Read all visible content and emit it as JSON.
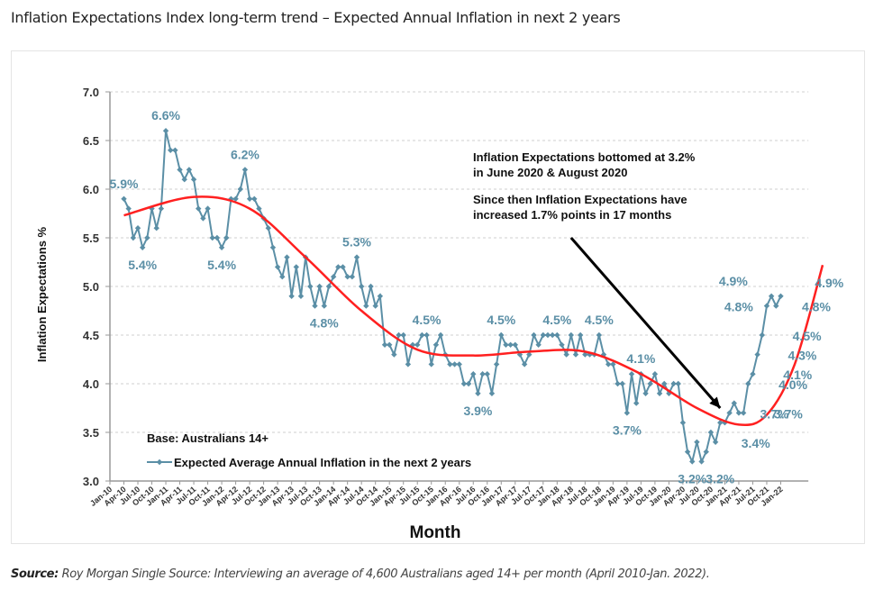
{
  "page": {
    "title": "Inflation Expectations Index long-term trend – Expected Annual Inflation in next 2 years",
    "source_label": "Source:",
    "source_text": " Roy Morgan Single Source: Interviewing an average of 4,600 Australians aged 14+ per month (April 2010-Jan. 2022)."
  },
  "chart_data": {
    "type": "line",
    "title": "Inflation Expectations Index long-term trend – Expected Annual Inflation in next 2 years",
    "xlabel": "Month",
    "ylabel": "Inflation Expectations %",
    "ylim": [
      3.0,
      7.0
    ],
    "yticks": [
      "3.0",
      "3.5",
      "4.0",
      "4.5",
      "5.0",
      "5.5",
      "6.0",
      "6.5",
      "7.0"
    ],
    "ytick_values": [
      3.0,
      3.5,
      4.0,
      4.5,
      5.0,
      5.5,
      6.0,
      6.5,
      7.0
    ],
    "grid": "horizontal-dashed",
    "xticks": [
      "Jan-10",
      "Apr-10",
      "Jul-10",
      "Oct-10",
      "Jan-11",
      "Apr-11",
      "Jul-11",
      "Oct-11",
      "Jan-12",
      "Apr-12",
      "Jul-12",
      "Oct-12",
      "Jan-13",
      "Apr-13",
      "Jul-13",
      "Oct-13",
      "Jan-14",
      "Apr-14",
      "Jul-14",
      "Oct-14",
      "Jan-15",
      "Apr-15",
      "Jul-15",
      "Oct-15",
      "Jan-16",
      "Apr-16",
      "Jul-16",
      "Oct-16",
      "Jan-17",
      "Apr-17",
      "Jul-17",
      "Oct-17",
      "Jan-18",
      "Apr-18",
      "Jul-18",
      "Oct-18",
      "Jan-19",
      "Apr-19",
      "Jul-19",
      "Oct-19",
      "Jan-20",
      "Apr-20",
      "Jul-20",
      "Oct-20",
      "Jan-21",
      "Apr-21",
      "Jul-21",
      "Oct-21",
      "Jan-22"
    ],
    "x_start": "Apr-10",
    "x_end": "Jan-22",
    "legend": {
      "position": "bottom-left",
      "base_note": "Base: Australians 14+",
      "entries": [
        "Expected Average Annual Inflation in the next 2 years"
      ]
    },
    "series": [
      {
        "name": "Expected Average Annual Inflation in the next 2 years",
        "color": "#5b8fa6",
        "start_month_index": 3,
        "values": [
          5.9,
          5.8,
          5.5,
          5.6,
          5.4,
          5.5,
          5.8,
          5.6,
          5.8,
          6.6,
          6.4,
          6.4,
          6.2,
          6.1,
          6.2,
          6.1,
          5.8,
          5.7,
          5.8,
          5.5,
          5.5,
          5.4,
          5.5,
          5.9,
          5.9,
          6.0,
          6.2,
          5.9,
          5.9,
          5.8,
          5.7,
          5.6,
          5.4,
          5.2,
          5.1,
          5.3,
          4.9,
          5.2,
          4.9,
          5.3,
          5.0,
          4.8,
          5.0,
          4.8,
          5.0,
          5.1,
          5.2,
          5.2,
          5.1,
          5.1,
          5.3,
          5.0,
          4.8,
          5.0,
          4.8,
          4.9,
          4.4,
          4.4,
          4.3,
          4.5,
          4.5,
          4.2,
          4.4,
          4.4,
          4.5,
          4.5,
          4.2,
          4.4,
          4.5,
          4.3,
          4.2,
          4.2,
          4.2,
          4.0,
          4.0,
          4.1,
          3.9,
          4.1,
          4.1,
          3.9,
          4.2,
          4.5,
          4.4,
          4.4,
          4.4,
          4.3,
          4.2,
          4.3,
          4.5,
          4.4,
          4.5,
          4.5,
          4.5,
          4.5,
          4.4,
          4.3,
          4.5,
          4.3,
          4.5,
          4.3,
          4.3,
          4.3,
          4.5,
          4.3,
          4.2,
          4.2,
          4.0,
          4.0,
          3.7,
          4.1,
          3.8,
          4.1,
          3.9,
          4.0,
          4.1,
          3.9,
          4.0,
          3.9,
          4.0,
          4.0,
          3.6,
          3.3,
          3.2,
          3.4,
          3.2,
          3.3,
          3.5,
          3.4,
          3.6,
          3.6,
          3.7,
          3.8,
          3.7,
          3.7,
          4.0,
          4.1,
          4.3,
          4.5,
          4.8,
          4.9,
          4.8,
          4.9
        ]
      },
      {
        "name": "Trend",
        "color": "#ff2020",
        "type": "smooth-trend",
        "points": [
          [
            3,
            5.73
          ],
          [
            18,
            5.92
          ],
          [
            30,
            5.8
          ],
          [
            42,
            5.3
          ],
          [
            54,
            4.75
          ],
          [
            66,
            4.35
          ],
          [
            78,
            4.29
          ],
          [
            90,
            4.33
          ],
          [
            102,
            4.33
          ],
          [
            114,
            4.1
          ],
          [
            126,
            3.75
          ],
          [
            135,
            3.58
          ],
          [
            141,
            3.68
          ],
          [
            147,
            4.2
          ],
          [
            153,
            5.22
          ]
        ]
      }
    ],
    "data_labels": [
      {
        "text": "5.9%",
        "month_index": 3,
        "value": 5.9,
        "pos": "above"
      },
      {
        "text": "5.4%",
        "month_index": 7,
        "value": 5.4,
        "pos": "below"
      },
      {
        "text": "6.6%",
        "month_index": 12,
        "value": 6.6,
        "pos": "above"
      },
      {
        "text": "6.2%",
        "month_index": 29,
        "value": 6.2,
        "pos": "above"
      },
      {
        "text": "5.4%",
        "month_index": 24,
        "value": 5.4,
        "pos": "below"
      },
      {
        "text": "4.8%",
        "month_index": 46,
        "value": 4.8,
        "pos": "below"
      },
      {
        "text": "5.3%",
        "month_index": 53,
        "value": 5.3,
        "pos": "above"
      },
      {
        "text": "4.5%",
        "month_index": 68,
        "value": 4.5,
        "pos": "above"
      },
      {
        "text": "3.9%",
        "month_index": 79,
        "value": 3.9,
        "pos": "below"
      },
      {
        "text": "4.5%",
        "month_index": 84,
        "value": 4.5,
        "pos": "above"
      },
      {
        "text": "4.5%",
        "month_index": 96,
        "value": 4.5,
        "pos": "above"
      },
      {
        "text": "4.5%",
        "month_index": 105,
        "value": 4.5,
        "pos": "above"
      },
      {
        "text": "4.1%",
        "month_index": 114,
        "value": 4.1,
        "pos": "above"
      },
      {
        "text": "3.7%",
        "month_index": 111,
        "value": 3.7,
        "pos": "below"
      },
      {
        "text": "3.2%",
        "month_index": 125,
        "value": 3.2,
        "pos": "below"
      },
      {
        "text": "3.2%",
        "month_index": 131,
        "value": 3.2,
        "pos": "below"
      },
      {
        "text": "3.4%",
        "month_index": 134,
        "value": 3.4,
        "pos": "right"
      },
      {
        "text": "3.7%",
        "month_index": 138,
        "value": 3.7,
        "pos": "right"
      },
      {
        "text": "3.7%",
        "month_index": 141,
        "value": 3.7,
        "pos": "right"
      },
      {
        "text": "4.0%",
        "month_index": 142,
        "value": 4.0,
        "pos": "right"
      },
      {
        "text": "4.1%",
        "month_index": 143,
        "value": 4.1,
        "pos": "right"
      },
      {
        "text": "4.3%",
        "month_index": 144,
        "value": 4.3,
        "pos": "right"
      },
      {
        "text": "4.5%",
        "month_index": 145,
        "value": 4.5,
        "pos": "right"
      },
      {
        "text": "4.8%",
        "month_index": 140,
        "value": 4.8,
        "pos": "left"
      },
      {
        "text": "4.9%",
        "month_index": 140,
        "value": 4.9,
        "pos": "above-left"
      },
      {
        "text": "4.8%",
        "month_index": 147,
        "value": 4.8,
        "pos": "right"
      },
      {
        "text": "4.9%",
        "month_index": 149,
        "value": 4.9,
        "pos": "above-right"
      }
    ],
    "annotations": [
      {
        "lines": [
          "Inflation Expectations bottomed at 3.2%",
          "in June 2020 & August 2020"
        ]
      },
      {
        "lines": [
          "Since then Inflation Expectations have",
          "increased 1.7% points in 17 months"
        ]
      }
    ],
    "arrow": {
      "from": [
        99,
        5.5
      ],
      "to": [
        131,
        3.75
      ],
      "color": "#000000"
    }
  }
}
